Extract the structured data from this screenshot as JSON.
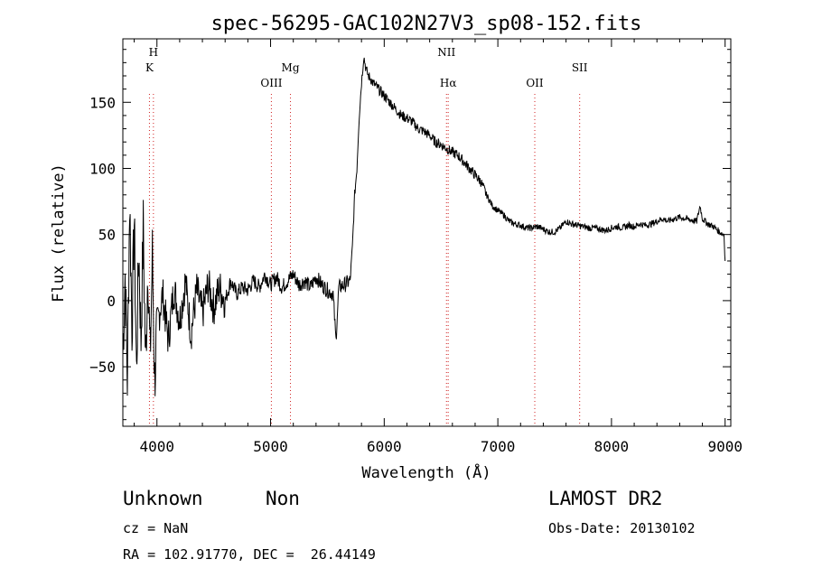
{
  "chart_data": {
    "type": "line",
    "title": "spec-56295-GAC102N27V3_sp08-152.fits",
    "xlabel": "Wavelength (Å)",
    "ylabel": "Flux (relative)",
    "xlim": [
      3700,
      9050
    ],
    "ylim": [
      -95,
      198
    ],
    "xticks": [
      4000,
      5000,
      6000,
      7000,
      8000,
      9000
    ],
    "yticks": [
      -50,
      0,
      50,
      100,
      150
    ],
    "grid": false,
    "line_color": "#000000",
    "marker_color": "#d02020",
    "series": [
      {
        "x": [
          3700,
          3720,
          3740,
          3760,
          3780,
          3800,
          3820,
          3840,
          3860,
          3880,
          3900,
          3920,
          3940,
          3960,
          3980,
          4000,
          4050,
          4100,
          4150,
          4200,
          4250,
          4300,
          4350,
          4400,
          4450,
          4500,
          4550,
          4600,
          4650,
          4700,
          4750,
          4800,
          4850,
          4900,
          4950,
          5000,
          5050,
          5100,
          5150,
          5200,
          5250,
          5300,
          5350,
          5400,
          5450,
          5500,
          5550,
          5575,
          5600,
          5650,
          5700,
          5720,
          5740,
          5760,
          5780,
          5800,
          5820,
          5840,
          5860,
          5880,
          5900,
          5950,
          6000,
          6050,
          6100,
          6150,
          6200,
          6250,
          6300,
          6350,
          6400,
          6450,
          6500,
          6550,
          6600,
          6650,
          6700,
          6750,
          6800,
          6850,
          6900,
          6950,
          7000,
          7050,
          7100,
          7150,
          7200,
          7250,
          7300,
          7350,
          7400,
          7450,
          7500,
          7550,
          7600,
          7650,
          7700,
          7750,
          7800,
          7850,
          7900,
          7950,
          8000,
          8050,
          8100,
          8150,
          8200,
          8250,
          8300,
          8350,
          8400,
          8450,
          8500,
          8550,
          8600,
          8650,
          8700,
          8750,
          8780,
          8800,
          8850,
          8900,
          8950,
          8990,
          9000
        ],
        "y": [
          -40,
          20,
          -60,
          75,
          -20,
          60,
          -55,
          40,
          -30,
          55,
          -50,
          30,
          -45,
          35,
          -60,
          -20,
          5,
          -30,
          10,
          -15,
          15,
          -25,
          8,
          -10,
          12,
          -5,
          10,
          0,
          15,
          5,
          10,
          8,
          15,
          10,
          20,
          12,
          18,
          10,
          15,
          20,
          12,
          15,
          10,
          18,
          12,
          8,
          5,
          -30,
          10,
          12,
          15,
          40,
          80,
          100,
          140,
          165,
          185,
          175,
          170,
          168,
          165,
          160,
          155,
          150,
          145,
          140,
          138,
          135,
          130,
          128,
          125,
          120,
          118,
          115,
          112,
          110,
          105,
          100,
          95,
          90,
          80,
          72,
          68,
          65,
          60,
          58,
          57,
          55,
          55,
          56,
          54,
          52,
          52,
          55,
          60,
          58,
          57,
          56,
          55,
          55,
          54,
          53,
          55,
          56,
          55,
          57,
          56,
          58,
          57,
          58,
          60,
          62,
          60,
          62,
          63,
          62,
          61,
          60,
          72,
          62,
          58,
          56,
          52,
          50,
          30
        ]
      }
    ],
    "lines": [
      {
        "label": "K",
        "x": 3934,
        "row": 2
      },
      {
        "label": "H",
        "x": 3969,
        "row": 1
      },
      {
        "label": "OIII",
        "x": 5007,
        "row": 3
      },
      {
        "label": "Mg",
        "x": 5175,
        "row": 2
      },
      {
        "label": "NII",
        "x": 6548,
        "row": 1
      },
      {
        "label": "Hα",
        "x": 6563,
        "row": 3
      },
      {
        "label": "OII",
        "x": 7325,
        "row": 3
      },
      {
        "label": "SII",
        "x": 7720,
        "row": 2
      }
    ]
  },
  "info": {
    "classification": "Unknown",
    "subclass": "Non",
    "survey": "LAMOST DR2",
    "cz": "cz = NaN",
    "obs_date": "Obs-Date: 20130102",
    "coords": "RA = 102.91770, DEC =  26.44149"
  }
}
